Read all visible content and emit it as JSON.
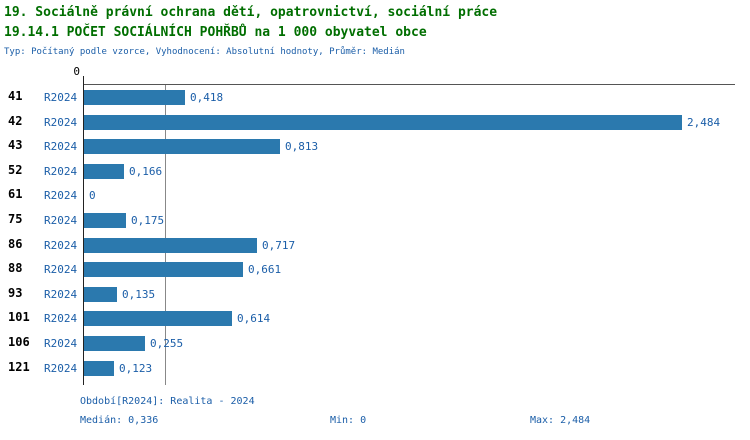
{
  "header": {
    "title_line1": "19. Sociálně právní ochrana dětí, opatrovnictví, sociální práce",
    "title_line2": "19.14.1 POČET SOCIÁLNÍCH POHŘBŮ na 1 000 obyvatel obce",
    "subtitle": "Typ: Počítaný podle vzorce, Vyhodnocení: Absolutní hodnoty, Průměr: Medián"
  },
  "chart_data": {
    "type": "bar",
    "orientation": "horizontal",
    "title": "19.14.1 POČET SOCIÁLNÍCH POHŘBŮ na 1 000 obyvatel obce",
    "categories": [
      "41",
      "42",
      "43",
      "52",
      "61",
      "75",
      "86",
      "88",
      "93",
      "101",
      "106",
      "121"
    ],
    "series_label": "R2024",
    "values": [
      0.418,
      2.484,
      0.813,
      0.166,
      0,
      0.175,
      0.717,
      0.661,
      0.135,
      0.614,
      0.255,
      0.123
    ],
    "value_labels": [
      "0,418",
      "2,484",
      "0,813",
      "0,166",
      "0",
      "0,175",
      "0,717",
      "0,661",
      "0,135",
      "0,614",
      "0,255",
      "0,123"
    ],
    "xlim": [
      0,
      2.7
    ],
    "axis_tick_label": "0",
    "median": 0.336,
    "min": 0,
    "max": 2.484,
    "grid": false,
    "legend": false
  },
  "footer": {
    "period": "Období[R2024]: Realita - 2024",
    "median": "Medián: 0,336",
    "min": "Min: 0",
    "max": "Max: 2,484"
  },
  "colors": {
    "title_green": "#006e00",
    "text_blue": "#1b5ea8",
    "bar_fill": "#2b79ae"
  }
}
